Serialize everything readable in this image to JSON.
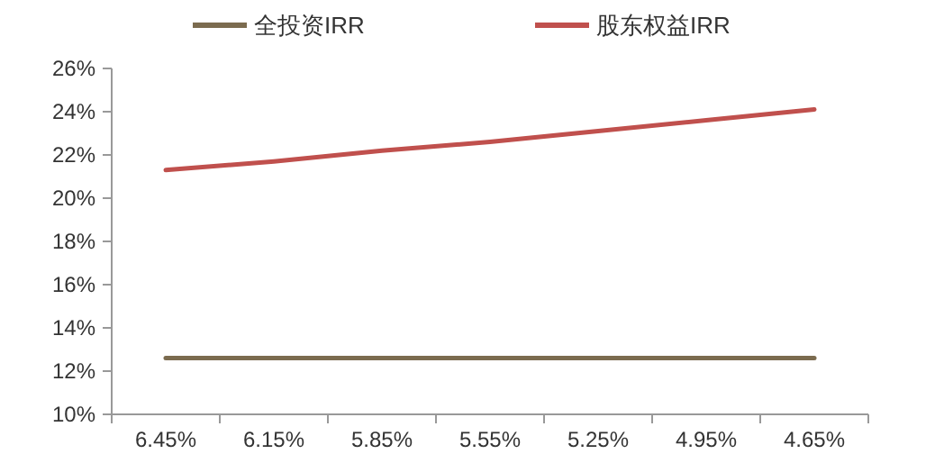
{
  "chart_data": {
    "type": "line",
    "categories": [
      "6.45%",
      "6.15%",
      "5.85%",
      "5.55%",
      "5.25%",
      "4.95%",
      "4.65%"
    ],
    "series": [
      {
        "name": "全投资IRR",
        "color": "#7b6b4f",
        "values": [
          12.6,
          12.6,
          12.6,
          12.6,
          12.6,
          12.6,
          12.6
        ]
      },
      {
        "name": "股东权益IRR",
        "color": "#c0504d",
        "values": [
          21.3,
          21.7,
          22.2,
          22.6,
          23.1,
          23.6,
          24.1
        ]
      }
    ],
    "ylim": [
      10,
      26
    ],
    "yticks": [
      {
        "value": 10,
        "label": "10%"
      },
      {
        "value": 12,
        "label": "12%"
      },
      {
        "value": 14,
        "label": "14%"
      },
      {
        "value": 16,
        "label": "16%"
      },
      {
        "value": 18,
        "label": "18%"
      },
      {
        "value": 20,
        "label": "20%"
      },
      {
        "value": 22,
        "label": "22%"
      },
      {
        "value": 24,
        "label": "24%"
      },
      {
        "value": 26,
        "label": "26%"
      }
    ],
    "grid": false,
    "legend": "top",
    "marker": "none",
    "line_style": "solid"
  }
}
